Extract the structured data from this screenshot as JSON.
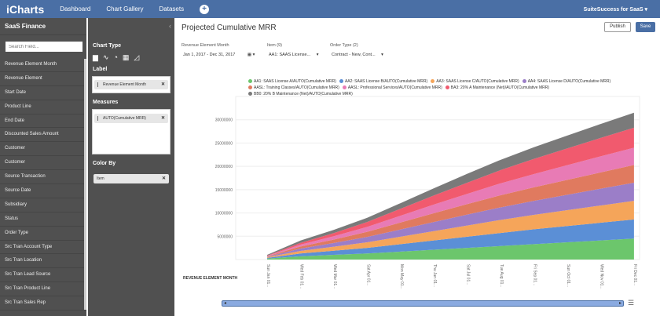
{
  "app": {
    "logo": "iCharts",
    "nav": [
      "Dashboard",
      "Chart Gallery",
      "Datasets"
    ],
    "user": "SuiteSuccess for SaaS"
  },
  "sidebar": {
    "title": "SaaS Finance",
    "search_placeholder": "Search Field...",
    "fields": [
      "Revenue Element Month",
      "Revenue Element",
      "Start Date",
      "Product Line",
      "End Date",
      "Discounted Sales Amount",
      "Customer",
      "Customer",
      "Source Transaction",
      "Source Date",
      "Subsidiary",
      "Status",
      "Order Type",
      "Src Tran Account Type",
      "Src Tran Location",
      "Src Tran Lead Source",
      "Src Tran Product Line",
      "Src Tran Sales Rep"
    ]
  },
  "panel": {
    "chart_type_label": "Chart Type",
    "label_heading": "Label",
    "label_value": "Revenue Element Month",
    "measures_heading": "Measures",
    "measures_value": "AUTO(Cumulative MRR)",
    "color_by_heading": "Color By",
    "color_by_value": "Item",
    "icons": [
      "bar-chart-icon",
      "line-chart-icon",
      "pie-chart-icon",
      "table-icon",
      "area-chart-icon"
    ]
  },
  "main": {
    "title": "Projected Cumulative MRR",
    "publish": "Publish",
    "save": "Save",
    "filters": [
      {
        "label": "Revenue Element Month",
        "value": "Jan 1, 2017 - Dec 31, 2017"
      },
      {
        "label": "Item (9)",
        "value": "AA1: SAAS License..."
      },
      {
        "label": "Order Type (2)",
        "value": "Contract - New, Cont..."
      }
    ],
    "x_title": "REVENUE ELEMENT MONTH"
  },
  "chart_data": {
    "type": "area",
    "stacked": true,
    "x": [
      "Sun Jan 01...",
      "Wed Feb 01...",
      "Wed Mar 01...",
      "Sat Apr 01...",
      "Mon May 01...",
      "Thu Jun 01...",
      "Sat Jul 01...",
      "Tue Aug 01...",
      "Fri Sep 01...",
      "Sun Oct 01...",
      "Wed Nov 01...",
      "Fri Dec 01..."
    ],
    "y_ticks": [
      "5000000",
      "10000000",
      "15000000",
      "20000000",
      "25000000",
      "30000000"
    ],
    "ylim": [
      0,
      35000000
    ],
    "legend_placement": "top",
    "series": [
      {
        "name": "AA1: SAAS License A/AUTO(Cumulative MRR)",
        "color": "#6cc66c",
        "values": [
          200000,
          700000,
          1000000,
          1300000,
          1700000,
          2100000,
          2500000,
          2900000,
          3300000,
          3700000,
          4100000,
          4500000
        ]
      },
      {
        "name": "AA2: SAAS License B/AUTO(Cumulative MRR)",
        "color": "#5b8fd6",
        "values": [
          150000,
          600000,
          900000,
          1200000,
          1600000,
          2000000,
          2400000,
          2800000,
          3200000,
          3500000,
          3800000,
          4100000
        ]
      },
      {
        "name": "AA3: SAAS License C/AUTO(Cumulative MRR)",
        "color": "#f5a55a",
        "values": [
          150000,
          550000,
          850000,
          1200000,
          1600000,
          2000000,
          2400000,
          2800000,
          3100000,
          3400000,
          3700000,
          4000000
        ]
      },
      {
        "name": "AA4: SAAS License D/AUTO(Cumulative MRR)",
        "color": "#9b7ec8",
        "values": [
          100000,
          500000,
          800000,
          1150000,
          1550000,
          1950000,
          2350000,
          2700000,
          3000000,
          3300000,
          3600000,
          3900000
        ]
      },
      {
        "name": "AASL: Training Classes/AUTO(Cumulative MRR)",
        "color": "#e07a5f",
        "values": [
          100000,
          450000,
          750000,
          1100000,
          1500000,
          1900000,
          2250000,
          2600000,
          2900000,
          3200000,
          3500000,
          3800000
        ]
      },
      {
        "name": "AASL: Professional Services/AUTO(Cumulative MRR)",
        "color": "#e87bb5",
        "values": [
          80000,
          400000,
          700000,
          1050000,
          1450000,
          1850000,
          2200000,
          2550000,
          2850000,
          3150000,
          3450000,
          3700000
        ]
      },
      {
        "name": "BA3: 20% A Maintenance (Net)/AUTO(Cumulative MRR)",
        "color": "#f15a6e",
        "values": [
          70000,
          380000,
          680000,
          1050000,
          1500000,
          1950000,
          2400000,
          2850000,
          3250000,
          3600000,
          3950000,
          4300000
        ]
      },
      {
        "name": "BB0: 20% B Maintenance (Net)/AUTO(Cumulative MRR)",
        "color": "#7a7a7a",
        "values": [
          150000,
          500000,
          700000,
          900000,
          1200000,
          1550000,
          1900000,
          2200000,
          2500000,
          2750000,
          3000000,
          3200000
        ]
      }
    ]
  }
}
